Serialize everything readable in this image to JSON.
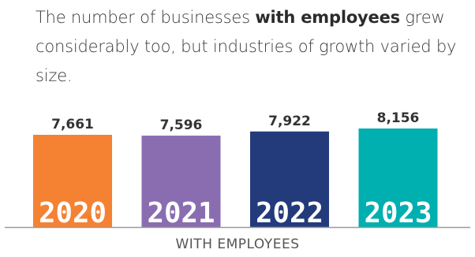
{
  "heading": {
    "pre": "The number of businesses ",
    "bold": "with employees",
    "post": " grew considerably too, but industries of growth varied by size."
  },
  "chart_data": {
    "type": "bar",
    "categories": [
      "2020",
      "2021",
      "2022",
      "2023"
    ],
    "values": [
      7661,
      7596,
      7922,
      8156
    ],
    "value_labels": [
      "7,661",
      "7,596",
      "7,922",
      "8,156"
    ],
    "colors": [
      "#F58233",
      "#8A6DB1",
      "#233B7B",
      "#00AFAF"
    ],
    "title": "",
    "xlabel": "WITH EMPLOYEES",
    "ylabel": "",
    "grid": false,
    "legend": "none"
  }
}
